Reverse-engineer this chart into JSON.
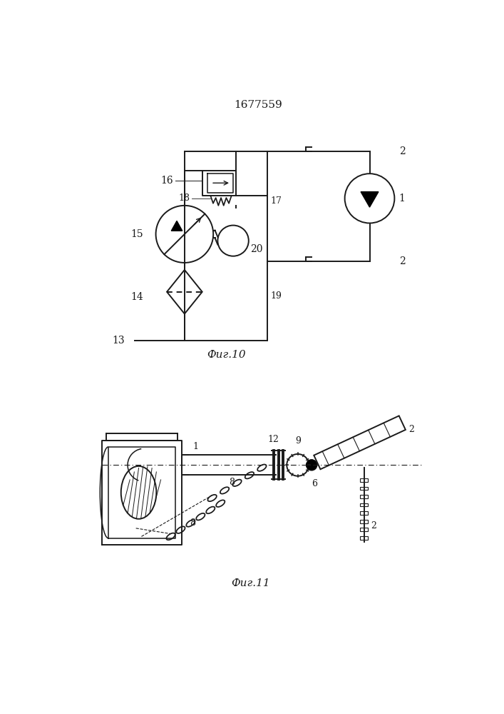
{
  "title": "1677559",
  "fig10_label": "Фиг.10",
  "fig11_label": "Фиг.11",
  "bg_color": "#ffffff",
  "line_color": "#1a1a1a",
  "line_width": 1.4
}
